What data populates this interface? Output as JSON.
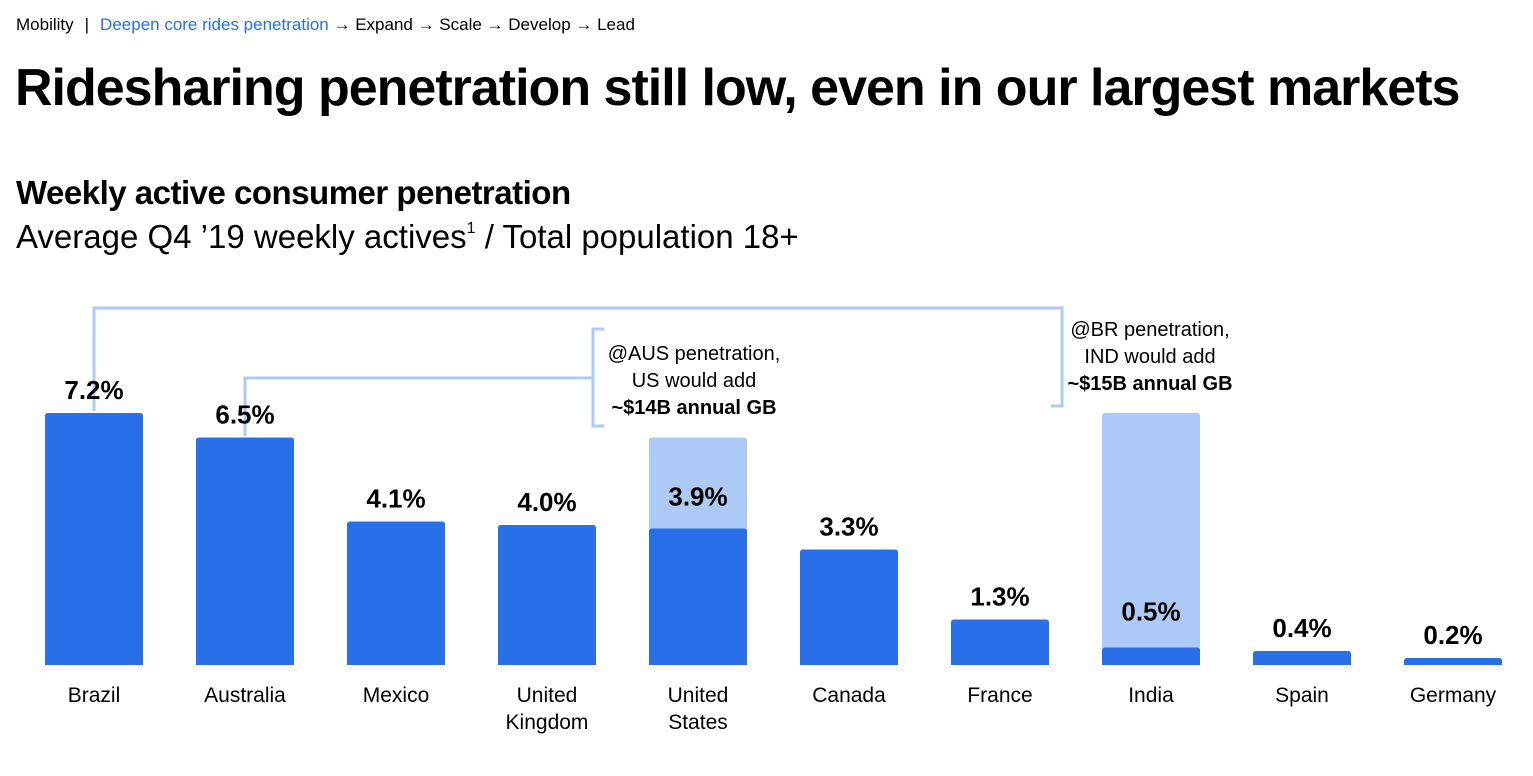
{
  "breadcrumb": {
    "section": "Mobility",
    "separator": "|",
    "active": "Deepen core rides penetration",
    "rest": "→ Expand → Scale → Develop → Lead"
  },
  "title": "Ridesharing penetration still low, even in our largest markets",
  "chart_title": "Weekly active consumer penetration",
  "chart_subtitle": {
    "before": "Average Q4 ’19 weekly actives",
    "footnote": "1",
    "after": " / Total population 18+"
  },
  "annotations": {
    "us": {
      "line1": "@AUS penetration,",
      "line2": "US would add",
      "line3": "~$14B annual GB"
    },
    "india": {
      "line1": "@BR penetration,",
      "line2": "IND would add",
      "line3": "~$15B annual GB"
    }
  },
  "colors": {
    "bar": "#2970e8",
    "potential": "#adc9f5",
    "bracket": "#adc9f5"
  },
  "chart_data": {
    "type": "bar",
    "categories": [
      "Brazil",
      "Australia",
      "Mexico",
      "United Kingdom",
      "United States",
      "Canada",
      "France",
      "India",
      "Spain",
      "Germany"
    ],
    "category_lines": [
      [
        "Brazil"
      ],
      [
        "Australia"
      ],
      [
        "Mexico"
      ],
      [
        "United",
        "Kingdom"
      ],
      [
        "United",
        "States"
      ],
      [
        "Canada"
      ],
      [
        "France"
      ],
      [
        "India"
      ],
      [
        "Spain"
      ],
      [
        "Germany"
      ]
    ],
    "values": [
      7.2,
      6.5,
      4.1,
      4.0,
      3.9,
      3.3,
      1.3,
      0.5,
      0.4,
      0.2
    ],
    "labels": [
      "7.2%",
      "6.5%",
      "4.1%",
      "4.0%",
      "3.9%",
      "3.3%",
      "1.3%",
      "0.5%",
      "0.4%",
      "0.2%"
    ],
    "potential": [
      null,
      null,
      null,
      null,
      6.5,
      null,
      null,
      7.2,
      null,
      null
    ],
    "unit": "%",
    "ylim": [
      0,
      7.2
    ],
    "grid": false,
    "legend": "none"
  }
}
